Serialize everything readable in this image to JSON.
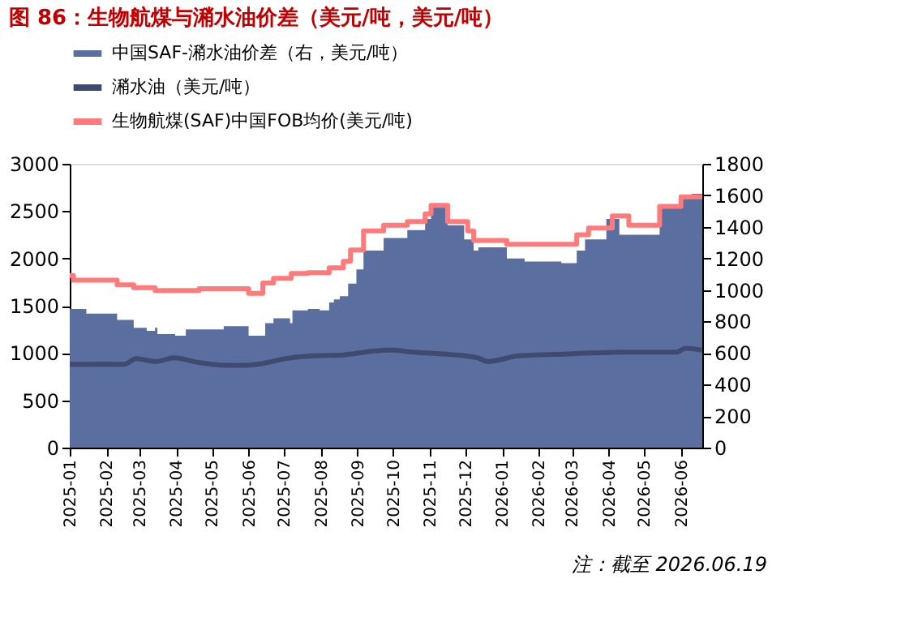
{
  "chart_data": {
    "type": "line",
    "title": "图 86：生物航煤与潲水油价差（美元/吨，美元/吨）",
    "annotations": [
      "注：截至 2026.06.19"
    ],
    "xlim": [
      "2025-01-01",
      "2026-06-19"
    ],
    "xticks": [
      "2025-01",
      "2025-02",
      "2025-03",
      "2025-04",
      "2025-05",
      "2025-06",
      "2025-07",
      "2025-08",
      "2025-09",
      "2025-10",
      "2025-11",
      "2025-12",
      "2026-01",
      "2026-02",
      "2026-03",
      "2026-04",
      "2026-05",
      "2026-06"
    ],
    "ylim": [
      0,
      3000
    ],
    "yticks": [
      0,
      500,
      1000,
      1500,
      2000,
      2500,
      3000
    ],
    "y2lim": [
      0,
      1800
    ],
    "y2ticks": [
      0,
      200,
      400,
      600,
      800,
      1000,
      1200,
      1400,
      1600,
      1800
    ],
    "legend": "top",
    "grid": false,
    "series": [
      {
        "name": "中国SAF-潲水油价差（右，美元/吨）",
        "type": "area",
        "axis": "y2",
        "color": "#5a6ea0",
        "x": [
          "2025-01-01",
          "2025-01-15",
          "2025-02-10",
          "2025-02-24",
          "2025-03-07",
          "2025-03-14",
          "2025-03-16",
          "2025-03-31",
          "2025-04-09",
          "2025-04-30",
          "2025-05-11",
          "2025-06-01",
          "2025-06-13",
          "2025-06-15",
          "2025-06-22",
          "2025-07-06",
          "2025-07-08",
          "2025-07-21",
          "2025-07-31",
          "2025-08-08",
          "2025-08-12",
          "2025-08-17",
          "2025-08-24",
          "2025-08-31",
          "2025-09-06",
          "2025-09-23",
          "2025-10-13",
          "2025-10-28",
          "2025-11-02",
          "2025-11-16",
          "2025-11-30",
          "2025-12-08",
          "2025-12-12",
          "2026-01-05",
          "2026-01-20",
          "2026-02-20",
          "2026-03-05",
          "2026-03-12",
          "2026-03-30",
          "2026-04-10",
          "2026-05-14",
          "2026-06-01",
          "2026-06-10",
          "2026-06-19"
        ],
        "values": [
          880,
          850,
          810,
          760,
          740,
          760,
          720,
          710,
          750,
          750,
          770,
          710,
          710,
          790,
          820,
          790,
          870,
          880,
          870,
          920,
          940,
          960,
          1040,
          1130,
          1250,
          1330,
          1380,
          1450,
          1540,
          1410,
          1320,
          1250,
          1270,
          1200,
          1180,
          1170,
          1250,
          1320,
          1450,
          1350,
          1530,
          1590,
          1610,
          1610
        ]
      },
      {
        "name": "潲水油（美元/吨）",
        "type": "line",
        "color": "#3f4a6e",
        "x": [
          "2025-01-01",
          "2025-02-16",
          "2025-02-26",
          "2025-03-15",
          "2025-03-30",
          "2025-04-20",
          "2025-05-13",
          "2025-05-27",
          "2025-06-13",
          "2025-07-02",
          "2025-07-26",
          "2025-08-20",
          "2025-09-14",
          "2025-09-29",
          "2025-10-18",
          "2025-11-12",
          "2025-12-11",
          "2025-12-20",
          "2026-01-15",
          "2026-02-25",
          "2026-03-15",
          "2026-04-15",
          "2026-05-28",
          "2026-06-05",
          "2026-06-19"
        ],
        "values": [
          880,
          880,
          940,
          910,
          950,
          900,
          870,
          870,
          890,
          940,
          970,
          980,
          1020,
          1030,
          1010,
          990,
          950,
          910,
          970,
          990,
          1000,
          1010,
          1010,
          1050,
          1030
        ]
      },
      {
        "name": "生物航煤(SAF)中国FOB均价(美元/吨)",
        "type": "step",
        "color": "#ff7b7b",
        "x": [
          "2025-01-01",
          "2025-01-04",
          "2025-02-10",
          "2025-02-24",
          "2025-03-14",
          "2025-04-20",
          "2025-06-01",
          "2025-06-13",
          "2025-06-22",
          "2025-07-07",
          "2025-07-21",
          "2025-08-08",
          "2025-08-20",
          "2025-08-26",
          "2025-09-06",
          "2025-09-23",
          "2025-10-13",
          "2025-10-28",
          "2025-11-02",
          "2025-11-16",
          "2025-12-03",
          "2025-12-08",
          "2026-01-05",
          "2026-03-05",
          "2026-03-15",
          "2026-04-04",
          "2026-04-18",
          "2026-05-14",
          "2026-06-01",
          "2026-06-19"
        ],
        "values": [
          1820,
          1770,
          1720,
          1690,
          1660,
          1680,
          1630,
          1740,
          1790,
          1840,
          1850,
          1900,
          1970,
          2090,
          2290,
          2350,
          2390,
          2470,
          2560,
          2390,
          2290,
          2190,
          2150,
          2250,
          2320,
          2450,
          2350,
          2550,
          2650,
          2650
        ]
      }
    ]
  }
}
